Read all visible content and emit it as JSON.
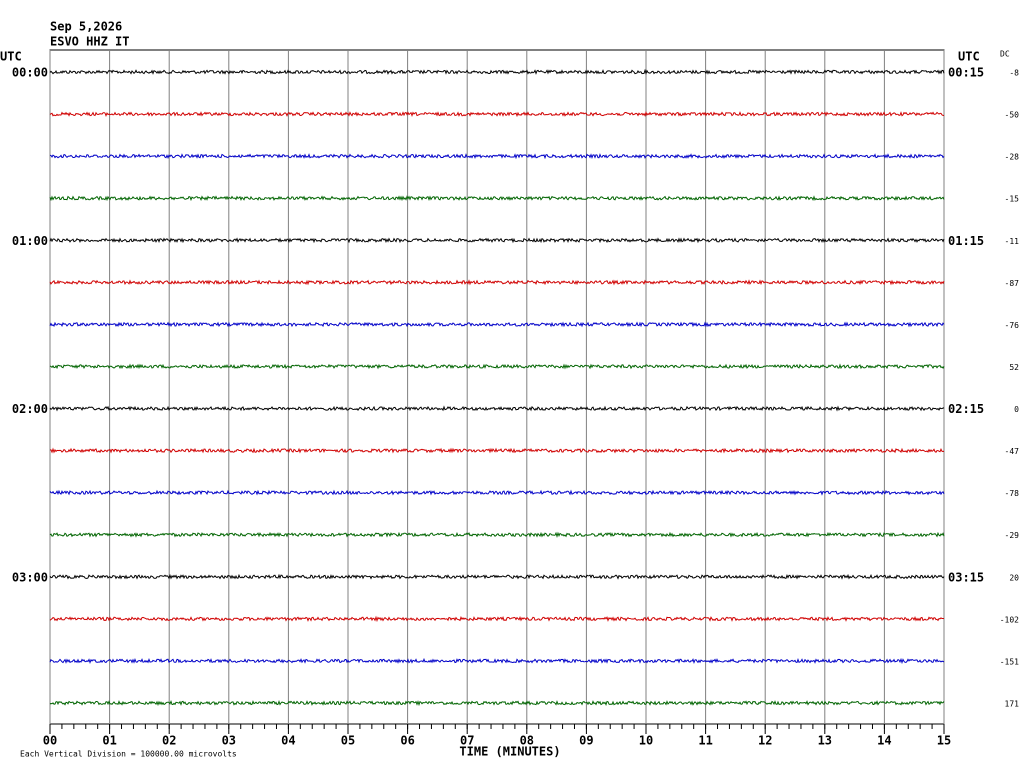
{
  "chart_data": {
    "type": "helicorder",
    "title": "Sep 5,2026",
    "subtitle": "ESVO HHZ IT",
    "left_axis_label": "UTC",
    "right_axis_label": "UTC",
    "dc_label": "DC",
    "hour_labels": [
      "00:00",
      "01:00",
      "02:00",
      "03:00"
    ],
    "end_labels": [
      "00:15",
      "01:15",
      "02:15",
      "03:15"
    ],
    "dc": [
      -8,
      -50,
      -28,
      -15,
      -11,
      -87,
      -76,
      52,
      0,
      -47,
      -78,
      -29,
      20,
      -102,
      -151,
      171
    ],
    "colors": [
      "#000000",
      "#d00000",
      "#0000c8",
      "#006400"
    ],
    "xlabel": "TIME (MINUTES)",
    "xlim": [
      0,
      15
    ],
    "xticks": [
      {
        "value": 0,
        "label": "00"
      },
      {
        "value": 1,
        "label": "01"
      },
      {
        "value": 2,
        "label": "02"
      },
      {
        "value": 3,
        "label": "03"
      },
      {
        "value": 4,
        "label": "04"
      },
      {
        "value": 5,
        "label": "05"
      },
      {
        "value": 6,
        "label": "06"
      },
      {
        "value": 7,
        "label": "07"
      },
      {
        "value": 8,
        "label": "08"
      },
      {
        "value": 9,
        "label": "09"
      },
      10,
      11,
      12,
      13,
      14,
      15
    ],
    "footnote": "Each Vertical Division = 100000.00 microvolts",
    "grid": true
  }
}
